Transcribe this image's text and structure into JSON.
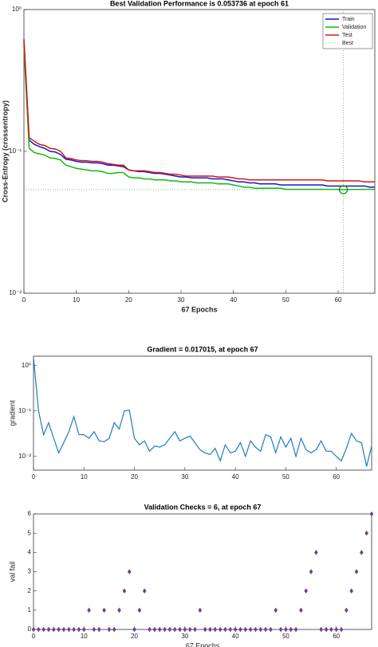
{
  "chart_data": [
    {
      "type": "line",
      "title": "Best Validation Performance is 0.053736 at epoch 61",
      "x_label": "67 Epochs",
      "y_label": "Cross-Entropy  (crossentropy)",
      "log_y": true,
      "legend": "top-right",
      "x": [
        0,
        1,
        2,
        3,
        4,
        5,
        6,
        7,
        8,
        9,
        10,
        11,
        12,
        13,
        14,
        15,
        16,
        17,
        18,
        19,
        20,
        21,
        22,
        23,
        24,
        25,
        26,
        27,
        28,
        29,
        30,
        31,
        32,
        33,
        34,
        35,
        36,
        37,
        38,
        39,
        40,
        41,
        42,
        43,
        44,
        45,
        46,
        47,
        48,
        49,
        50,
        51,
        52,
        53,
        54,
        55,
        56,
        57,
        58,
        59,
        60,
        61,
        62,
        63,
        64,
        65,
        66,
        67
      ],
      "series": [
        {
          "name": "Train",
          "color": "#1515c8",
          "values": [
            0.6,
            0.12,
            0.112,
            0.108,
            0.105,
            0.1,
            0.099,
            0.095,
            0.088,
            0.087,
            0.085,
            0.084,
            0.084,
            0.083,
            0.083,
            0.082,
            0.08,
            0.08,
            0.079,
            0.078,
            0.074,
            0.073,
            0.072,
            0.072,
            0.071,
            0.07,
            0.07,
            0.069,
            0.068,
            0.067,
            0.066,
            0.066,
            0.065,
            0.065,
            0.065,
            0.065,
            0.064,
            0.064,
            0.064,
            0.063,
            0.062,
            0.061,
            0.061,
            0.06,
            0.06,
            0.059,
            0.059,
            0.059,
            0.059,
            0.058,
            0.058,
            0.058,
            0.058,
            0.058,
            0.058,
            0.058,
            0.058,
            0.058,
            0.057,
            0.057,
            0.057,
            0.057,
            0.057,
            0.057,
            0.057,
            0.057,
            0.056,
            0.056
          ]
        },
        {
          "name": "Validation",
          "color": "#12b812",
          "values": [
            0.55,
            0.105,
            0.098,
            0.096,
            0.094,
            0.09,
            0.089,
            0.087,
            0.08,
            0.078,
            0.076,
            0.075,
            0.074,
            0.073,
            0.073,
            0.072,
            0.07,
            0.07,
            0.071,
            0.071,
            0.066,
            0.065,
            0.065,
            0.064,
            0.064,
            0.063,
            0.063,
            0.063,
            0.062,
            0.062,
            0.061,
            0.061,
            0.061,
            0.06,
            0.06,
            0.06,
            0.06,
            0.059,
            0.059,
            0.059,
            0.058,
            0.057,
            0.056,
            0.056,
            0.055,
            0.055,
            0.055,
            0.055,
            0.055,
            0.055,
            0.054,
            0.054,
            0.054,
            0.054,
            0.054,
            0.054,
            0.054,
            0.054,
            0.054,
            0.054,
            0.054,
            0.053736,
            0.0538,
            0.0539,
            0.0539,
            0.054,
            0.054,
            0.054
          ]
        },
        {
          "name": "Test",
          "color": "#d01818",
          "values": [
            0.62,
            0.125,
            0.118,
            0.112,
            0.11,
            0.105,
            0.104,
            0.1,
            0.09,
            0.089,
            0.087,
            0.086,
            0.086,
            0.085,
            0.085,
            0.084,
            0.082,
            0.081,
            0.08,
            0.08,
            0.074,
            0.073,
            0.073,
            0.073,
            0.072,
            0.071,
            0.071,
            0.07,
            0.069,
            0.069,
            0.068,
            0.067,
            0.067,
            0.067,
            0.067,
            0.067,
            0.067,
            0.066,
            0.066,
            0.066,
            0.065,
            0.064,
            0.064,
            0.063,
            0.063,
            0.063,
            0.063,
            0.063,
            0.063,
            0.063,
            0.063,
            0.063,
            0.063,
            0.063,
            0.063,
            0.063,
            0.063,
            0.063,
            0.062,
            0.062,
            0.062,
            0.062,
            0.062,
            0.062,
            0.062,
            0.061,
            0.061,
            0.061
          ]
        }
      ],
      "best": {
        "name": "Best",
        "color": "#55a055",
        "x": 61,
        "value": 0.053736
      },
      "xlim": [
        0,
        67
      ],
      "xticks": [
        0,
        10,
        20,
        30,
        40,
        50,
        60
      ],
      "ylim": [
        0.01,
        1
      ],
      "yticks": [
        {
          "value": 1,
          "label": "10⁰"
        },
        {
          "value": 0.1,
          "label": "10⁻¹"
        },
        {
          "value": 0.01,
          "label": "10⁻²"
        }
      ]
    },
    {
      "type": "line",
      "title": "Gradient = 0.017015, at epoch 67",
      "y_label": "gradient",
      "log_y": true,
      "x": [
        0,
        1,
        2,
        3,
        4,
        5,
        6,
        7,
        8,
        9,
        10,
        11,
        12,
        13,
        14,
        15,
        16,
        17,
        18,
        19,
        20,
        21,
        22,
        23,
        24,
        25,
        26,
        27,
        28,
        29,
        30,
        31,
        32,
        33,
        34,
        35,
        36,
        37,
        38,
        39,
        40,
        41,
        42,
        43,
        44,
        45,
        46,
        47,
        48,
        49,
        50,
        51,
        52,
        53,
        54,
        55,
        56,
        57,
        58,
        59,
        60,
        61,
        62,
        63,
        64,
        65,
        66,
        67
      ],
      "series": [
        {
          "name": "gradient",
          "color": "#1f7bbf",
          "values": [
            1.5,
            0.1,
            0.03,
            0.055,
            0.025,
            0.012,
            0.02,
            0.035,
            0.075,
            0.03,
            0.03,
            0.025,
            0.035,
            0.022,
            0.021,
            0.025,
            0.055,
            0.04,
            0.1,
            0.105,
            0.025,
            0.018,
            0.022,
            0.013,
            0.017,
            0.016,
            0.018,
            0.025,
            0.035,
            0.022,
            0.025,
            0.028,
            0.02,
            0.014,
            0.012,
            0.011,
            0.015,
            0.008,
            0.018,
            0.012,
            0.013,
            0.02,
            0.01,
            0.022,
            0.016,
            0.013,
            0.03,
            0.027,
            0.012,
            0.027,
            0.016,
            0.025,
            0.01,
            0.025,
            0.014,
            0.012,
            0.014,
            0.022,
            0.013,
            0.013,
            0.01,
            0.008,
            0.015,
            0.032,
            0.022,
            0.02,
            0.006,
            0.017015
          ]
        }
      ],
      "xlim": [
        0,
        67
      ],
      "xticks": [
        0,
        10,
        20,
        30,
        40,
        50,
        60
      ],
      "ylim": [
        0.005,
        1.6
      ],
      "yticks": [
        {
          "value": 1,
          "label": "10⁰"
        },
        {
          "value": 0.1,
          "label": "10⁻¹"
        },
        {
          "value": 0.01,
          "label": "10⁻²"
        }
      ]
    },
    {
      "type": "scatter",
      "title": "Validation Checks = 6, at epoch 67",
      "x_label": "67 Epochs",
      "y_label": "val fail",
      "color": "#7b3a8c",
      "x": [
        0,
        1,
        2,
        3,
        4,
        5,
        6,
        7,
        8,
        9,
        10,
        11,
        12,
        13,
        14,
        15,
        16,
        17,
        18,
        19,
        20,
        21,
        22,
        23,
        24,
        25,
        26,
        27,
        28,
        29,
        30,
        31,
        32,
        33,
        34,
        35,
        36,
        37,
        38,
        39,
        40,
        41,
        42,
        43,
        44,
        45,
        46,
        47,
        48,
        49,
        50,
        51,
        52,
        53,
        54,
        55,
        56,
        57,
        58,
        59,
        60,
        61,
        62,
        63,
        64,
        65,
        66,
        67
      ],
      "values": [
        0,
        0,
        0,
        0,
        0,
        0,
        0,
        0,
        0,
        0,
        0,
        1,
        0,
        0,
        1,
        0,
        0,
        1,
        2,
        3,
        0,
        1,
        2,
        0,
        0,
        0,
        0,
        0,
        0,
        0,
        0,
        0,
        0,
        1,
        0,
        0,
        0,
        0,
        0,
        0,
        0,
        0,
        0,
        0,
        0,
        0,
        0,
        0,
        1,
        0,
        0,
        0,
        0,
        1,
        2,
        3,
        4,
        0,
        0,
        0,
        0,
        0,
        1,
        2,
        3,
        4,
        5,
        6
      ],
      "xlim": [
        0,
        67
      ],
      "xticks": [
        0,
        10,
        20,
        30,
        40,
        50,
        60
      ],
      "ylim": [
        0,
        6
      ],
      "yticks": [
        0,
        1,
        2,
        3,
        4,
        5,
        6
      ]
    }
  ]
}
